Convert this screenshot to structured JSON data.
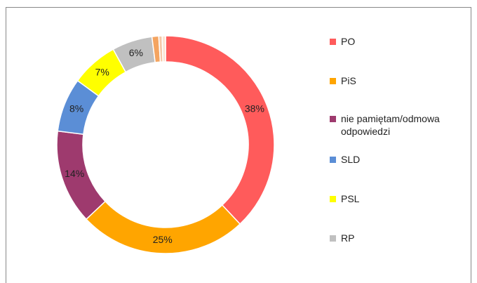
{
  "chart_data": {
    "type": "donut",
    "categories": [
      "PO",
      "PiS",
      "nie pamiętam/odmowa odpowiedzi",
      "SLD",
      "PSL",
      "RP",
      null,
      null,
      null
    ],
    "values": [
      38,
      25,
      14,
      8,
      7,
      6,
      1,
      0.5,
      0.5
    ],
    "value_labels": [
      "38%",
      "25%",
      "14%",
      "8%",
      "7%",
      "6%",
      null,
      null,
      null
    ],
    "colors": [
      "#ff5b5b",
      "#ffa500",
      "#9e3a6e",
      "#5b8ed6",
      "#ffff00",
      "#c0c0c0",
      "#f4a460",
      "#f5c9a8",
      "#fbe3d0"
    ],
    "legend": "right"
  }
}
